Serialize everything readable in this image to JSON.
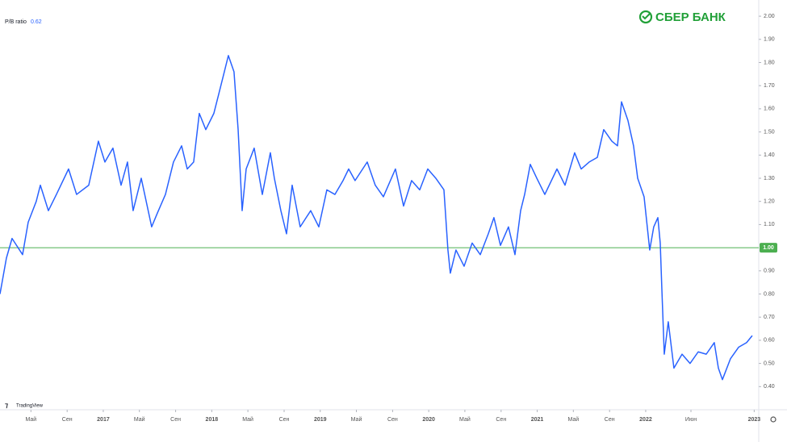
{
  "chart_data": {
    "type": "line",
    "logo_text": "СБЕР БАНК",
    "watermark": "TradingView",
    "current_value": 0.62,
    "series": [
      {
        "name": "P/B ratio",
        "color": "#2962ff",
        "x": [
          2016.048,
          2016.107,
          2016.159,
          2016.256,
          2016.308,
          2016.382,
          2016.42,
          2016.494,
          2016.568,
          2016.68,
          2016.754,
          2016.866,
          2016.955,
          2017.015,
          2017.089,
          2017.164,
          2017.223,
          2017.275,
          2017.35,
          2017.446,
          2017.499,
          2017.573,
          2017.647,
          2017.722,
          2017.774,
          2017.833,
          2017.885,
          2017.945,
          2018.019,
          2018.057,
          2018.116,
          2018.153,
          2018.205,
          2018.243,
          2018.28,
          2018.317,
          2018.391,
          2018.466,
          2018.54,
          2018.577,
          2018.637,
          2018.689,
          2018.741,
          2018.815,
          2018.912,
          2018.987,
          2019.061,
          2019.135,
          2019.21,
          2019.262,
          2019.321,
          2019.433,
          2019.507,
          2019.582,
          2019.693,
          2019.768,
          2019.842,
          2019.917,
          2019.991,
          2020.065,
          2020.14,
          2020.177,
          2020.199,
          2020.251,
          2020.326,
          2020.4,
          2020.475,
          2020.549,
          2020.601,
          2020.661,
          2020.735,
          2020.795,
          2020.847,
          2020.884,
          2020.936,
          2020.996,
          2021.07,
          2021.182,
          2021.256,
          2021.345,
          2021.405,
          2021.479,
          2021.554,
          2021.613,
          2021.688,
          2021.74,
          2021.777,
          2021.836,
          2021.888,
          2021.926,
          2021.985,
          2022.037,
          2022.074,
          2022.112,
          2022.134,
          2022.149,
          2022.171,
          2022.208,
          2022.26,
          2022.335,
          2022.409,
          2022.484,
          2022.558,
          2022.632,
          2022.67,
          2022.707,
          2022.781,
          2022.856,
          2022.93,
          2022.982
        ],
        "values": [
          0.8,
          0.955,
          1.04,
          0.97,
          1.11,
          1.2,
          1.27,
          1.16,
          1.23,
          1.34,
          1.23,
          1.27,
          1.46,
          1.37,
          1.43,
          1.27,
          1.37,
          1.16,
          1.3,
          1.09,
          1.15,
          1.23,
          1.37,
          1.44,
          1.34,
          1.37,
          1.58,
          1.51,
          1.58,
          1.65,
          1.76,
          1.83,
          1.76,
          1.51,
          1.16,
          1.34,
          1.43,
          1.23,
          1.41,
          1.3,
          1.16,
          1.06,
          1.27,
          1.09,
          1.16,
          1.09,
          1.25,
          1.23,
          1.29,
          1.34,
          1.29,
          1.37,
          1.27,
          1.22,
          1.34,
          1.18,
          1.29,
          1.25,
          1.34,
          1.3,
          1.25,
          0.99,
          0.89,
          0.99,
          0.92,
          1.02,
          0.97,
          1.06,
          1.13,
          1.01,
          1.09,
          0.97,
          1.16,
          1.23,
          1.36,
          1.3,
          1.23,
          1.34,
          1.27,
          1.41,
          1.34,
          1.37,
          1.39,
          1.51,
          1.46,
          1.44,
          1.63,
          1.55,
          1.44,
          1.3,
          1.22,
          0.99,
          1.09,
          1.13,
          1.02,
          0.82,
          0.54,
          0.68,
          0.48,
          0.54,
          0.5,
          0.55,
          0.54,
          0.59,
          0.48,
          0.43,
          0.52,
          0.57,
          0.59,
          0.62
        ]
      }
    ],
    "hline": {
      "value": 1,
      "label": "1.00",
      "color": "#4caf50"
    },
    "xlim": [
      2016.048,
      2023.042
    ],
    "xticks": [
      {
        "value": 2016.333,
        "label": "Май"
      },
      {
        "value": 2016.667,
        "label": "Сен"
      },
      2017,
      {
        "value": 2017.333,
        "label": "Май"
      },
      {
        "value": 2017.667,
        "label": "Сен"
      },
      2018,
      {
        "value": 2018.333,
        "label": "Май"
      },
      {
        "value": 2018.667,
        "label": "Сен"
      },
      2019,
      {
        "value": 2019.333,
        "label": "Май"
      },
      {
        "value": 2019.667,
        "label": "Сен"
      },
      2020,
      {
        "value": 2020.333,
        "label": "Май"
      },
      {
        "value": 2020.667,
        "label": "Сен"
      },
      2021,
      {
        "value": 2021.333,
        "label": "Май"
      },
      {
        "value": 2021.667,
        "label": "Сен"
      },
      2022,
      {
        "value": 2022.417,
        "label": "Июн"
      },
      2023
    ],
    "ylim": [
      0.3,
      2.07
    ],
    "yticks": [
      {
        "value": 0.4,
        "label": "0.40"
      },
      {
        "value": 0.5,
        "label": "0.50"
      },
      {
        "value": 0.6,
        "label": "0.60"
      },
      {
        "value": 0.7,
        "label": "0.70"
      },
      {
        "value": 0.8,
        "label": "0.80"
      },
      {
        "value": 0.9,
        "label": "0.90"
      },
      {
        "value": 1.1,
        "label": "1.10"
      },
      {
        "value": 1.2,
        "label": "1.20"
      },
      {
        "value": 1.3,
        "label": "1.30"
      },
      {
        "value": 1.4,
        "label": "1.40"
      },
      {
        "value": 1.5,
        "label": "1.50"
      },
      {
        "value": 1.6,
        "label": "1.60"
      },
      {
        "value": 1.7,
        "label": "1.70"
      },
      {
        "value": 1.8,
        "label": "1.80"
      },
      {
        "value": 1.9,
        "label": "1.90"
      },
      {
        "value": 2,
        "label": "2.00"
      }
    ]
  }
}
